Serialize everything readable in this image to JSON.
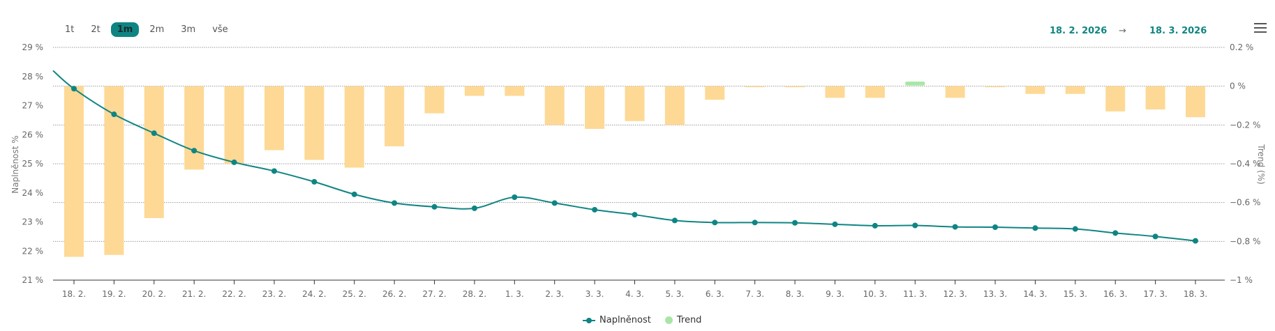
{
  "range_selector": {
    "options": [
      "1t",
      "2t",
      "1m",
      "2m",
      "3m",
      "vše"
    ],
    "active": "1m"
  },
  "date_range": {
    "from": "18. 2. 2026",
    "arrow": "→",
    "to": "18. 3. 2026"
  },
  "menu": {
    "icon": "hamburger-icon"
  },
  "colors": {
    "line": "#0f8583",
    "bar": "#fdd995",
    "bar_positive": "#a8e6a6"
  },
  "chart_data": {
    "type": "bar+line",
    "categories": [
      "18. 2.",
      "19. 2.",
      "20. 2.",
      "21. 2.",
      "22. 2.",
      "23. 2.",
      "24. 2.",
      "25. 2.",
      "26. 2.",
      "27. 2.",
      "28. 2.",
      "1. 3.",
      "2. 3.",
      "3. 3.",
      "4. 3.",
      "5. 3.",
      "6. 3.",
      "7. 3.",
      "8. 3.",
      "9. 3.",
      "10. 3.",
      "11. 3.",
      "12. 3.",
      "13. 3.",
      "14. 3.",
      "15. 3.",
      "16. 3.",
      "17. 3.",
      "18. 3."
    ],
    "y_left": {
      "label": "Naplněnost %",
      "ticks": [
        "29 %",
        "28 %",
        "27 %",
        "26 %",
        "25 %",
        "24 %",
        "23 %",
        "22 %",
        "21 %"
      ],
      "range": [
        21,
        29
      ]
    },
    "y_right": {
      "label": "Trend (%)",
      "ticks": [
        "0.2 %",
        "0 %",
        "−0.2 %",
        "−0.4 %",
        "−0.6 %",
        "−0.8 %",
        "−1 %"
      ],
      "range": [
        -1,
        0.2
      ]
    },
    "series": [
      {
        "name": "Naplněnost",
        "type": "line",
        "axis": "left",
        "start_value": 28.2,
        "values": [
          27.58,
          26.7,
          26.05,
          25.45,
          25.05,
          24.75,
          24.38,
          23.95,
          23.65,
          23.52,
          23.47,
          23.85,
          23.65,
          23.42,
          23.25,
          23.05,
          22.98,
          22.98,
          22.97,
          22.92,
          22.87,
          22.88,
          22.83,
          22.82,
          22.79,
          22.76,
          22.62,
          22.5,
          22.35
        ]
      },
      {
        "name": "Trend",
        "type": "bar",
        "axis": "right",
        "values": [
          -0.88,
          -0.87,
          -0.68,
          -0.43,
          -0.4,
          -0.33,
          -0.38,
          -0.42,
          -0.31,
          -0.14,
          -0.05,
          -0.05,
          -0.2,
          -0.22,
          -0.18,
          -0.2,
          -0.07,
          0,
          -0.005,
          -0.06,
          -0.06,
          0.02,
          -0.06,
          0,
          -0.04,
          -0.04,
          -0.13,
          -0.12,
          -0.16
        ]
      }
    ],
    "grid": true,
    "legend_position": "bottom-center"
  }
}
